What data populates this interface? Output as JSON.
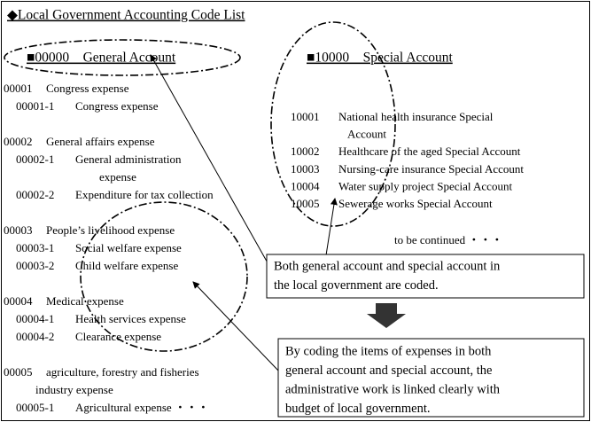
{
  "title": "◆Local Government Accounting Code List",
  "general_account": {
    "heading": "■00000　General Account",
    "groups": [
      {
        "code": "00001",
        "label": [
          "Congress expense"
        ],
        "subs": [
          {
            "code": "00001-1",
            "label": [
              "Congress expense"
            ]
          }
        ]
      },
      {
        "code": "00002",
        "label": [
          "General affairs expense"
        ],
        "subs": [
          {
            "code": "00002-1",
            "label": [
              "General administration",
              "expense"
            ]
          },
          {
            "code": "00002-2",
            "label": [
              "Expenditure for tax collection"
            ]
          }
        ]
      },
      {
        "code": "00003",
        "label": [
          "People’s livelihood expense"
        ],
        "subs": [
          {
            "code": "00003-1",
            "label": [
              "Social welfare expense"
            ]
          },
          {
            "code": "00003-2",
            "label": [
              "Child welfare expense"
            ]
          }
        ]
      },
      {
        "code": "00004",
        "label": [
          "Medical expense"
        ],
        "subs": [
          {
            "code": "00004-1",
            "label": [
              "Health services expense"
            ]
          },
          {
            "code": "00004-2",
            "label": [
              "Clearance expense"
            ]
          }
        ]
      },
      {
        "code": "00005",
        "label": [
          "agriculture, forestry and fisheries",
          "industry expense"
        ],
        "subs": [
          {
            "code": "00005-1",
            "label": [
              "Agricultural expense ・・・"
            ]
          }
        ]
      }
    ]
  },
  "special_account": {
    "heading": "■10000　Special Account",
    "items": [
      {
        "code": "10001",
        "label": [
          "National health insurance Special",
          "Account"
        ]
      },
      {
        "code": "10002",
        "label": [
          "Healthcare of the aged Special Account"
        ]
      },
      {
        "code": "10003",
        "label": [
          "Nursing-care insurance Special Account"
        ]
      },
      {
        "code": "10004",
        "label": [
          "Water supply project Special Account"
        ]
      },
      {
        "code": "10005",
        "label": [
          "Sewerage works Special Account"
        ]
      }
    ],
    "continued": "to be continued ・・・"
  },
  "notes": [
    [
      "Both general account and special account in",
      "the local government are coded."
    ],
    [
      "By coding the items of expenses in both",
      "general account and special account, the",
      "administrative work is linked clearly with",
      "budget of local government."
    ]
  ]
}
